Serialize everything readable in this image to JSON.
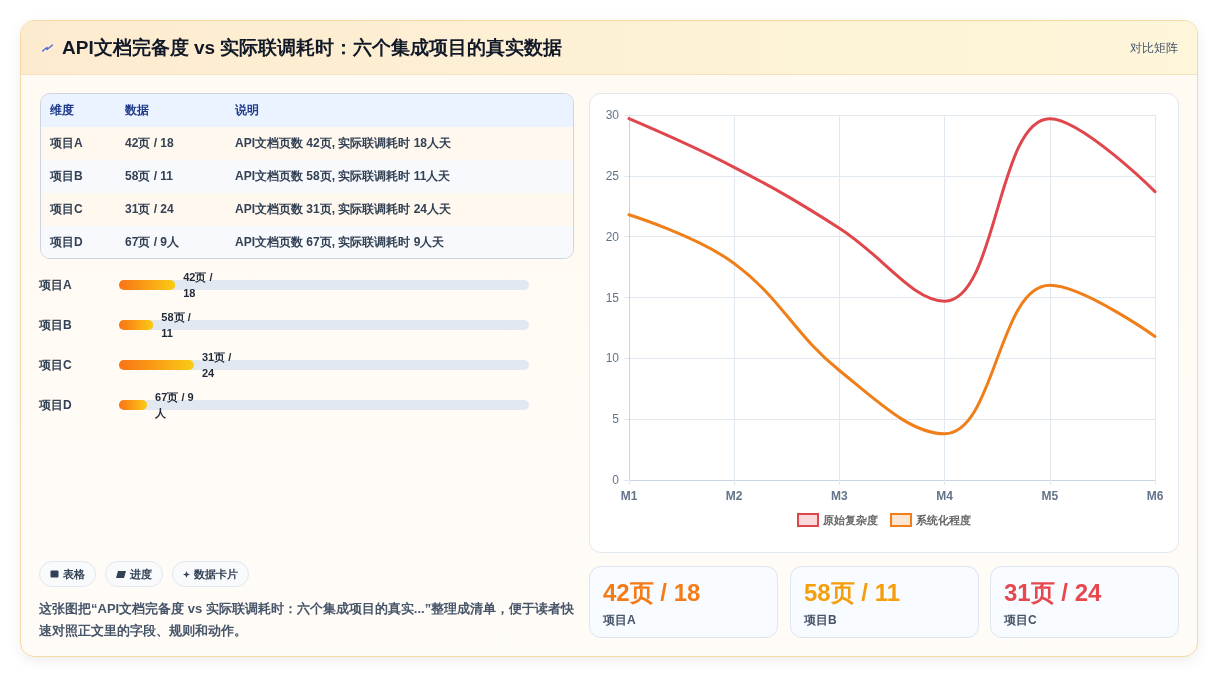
{
  "chart_data": [
    {
      "type": "other",
      "title": "API文档完备度 vs 实际联调耗时：六个集成项目的真实数据",
      "subtitle": "对比矩阵",
      "annotations": [
        "维度",
        "数据",
        "说明",
        "项目A",
        "42页 / 18",
        "API文档页数 42页, 实际联调耗时 18人天",
        "项目B",
        "58页 / 11",
        "API文档页数 58页, 实际联调耗时 11人天",
        "项目C",
        "31页 / 24",
        "API文档页数 31页, 实际联调耗时 24人天",
        "项目D",
        "67页 / 9人",
        "API文档页数 67页, 实际联调耗时 9人天"
      ]
    },
    {
      "type": "bar",
      "orientation": "horizontal",
      "categories": [
        "项目A",
        "项目B",
        "项目C",
        "项目D"
      ],
      "values": [
        18,
        11,
        24,
        9
      ],
      "value_labels": [
        "42页 / 18",
        "58页 / 11",
        "31页 / 24",
        "67页 / 9人"
      ],
      "color": "#f97316",
      "tick_labels": "y"
    },
    {
      "type": "other",
      "annotations": [
        "表格",
        "进度",
        "数据卡片",
        "这张图把“API文档完备度 vs 实际联调耗时：六个集成项目的真实...”整理成清单，便于读者快速对照正文里的字段、规则和动作。"
      ]
    },
    {
      "type": "line",
      "categories": [
        "M1",
        "M2",
        "M3",
        "M4",
        "M5",
        "M6"
      ],
      "series": [
        {
          "name": "原始复杂度",
          "color": "#e0474c",
          "values": [
            29.7,
            25.7,
            20.7,
            14.7,
            29.7,
            23.7
          ]
        },
        {
          "name": "系统化程度",
          "color": "#f07f1a",
          "values": [
            21.8,
            17.8,
            9.0,
            3.8,
            16.0,
            11.8
          ]
        }
      ],
      "ylim": [
        0,
        30
      ],
      "yticks": [
        0,
        5,
        10,
        15,
        20,
        25,
        30
      ],
      "grid": true,
      "legend": "bottom"
    },
    {
      "type": "other",
      "annotations": [
        "42页 / 18",
        "项目A",
        "58页 / 11",
        "项目B",
        "31页 / 24",
        "项目C"
      ],
      "colors": [
        "#f47b16",
        "#f59e0b",
        "#e5484d"
      ]
    }
  ]
}
